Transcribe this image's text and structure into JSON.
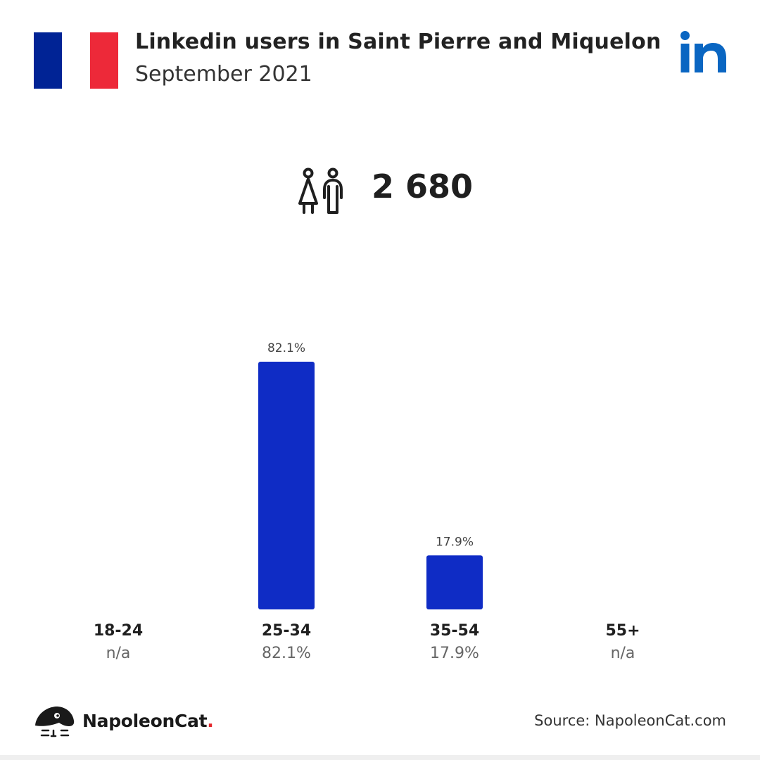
{
  "header": {
    "title": "Linkedin users in Saint Pierre and Miquelon",
    "subtitle": "September 2021",
    "flag_colors": [
      "#002395",
      "#ffffff",
      "#ED2939"
    ],
    "platform_icon": "linkedin-logo",
    "platform_color": "#0A66C2"
  },
  "summary": {
    "icon": "users-icon",
    "total_users": "2 680"
  },
  "chart_data": {
    "type": "bar",
    "categories": [
      "18-24",
      "25-34",
      "35-54",
      "55+"
    ],
    "values": [
      null,
      82.1,
      17.9,
      null
    ],
    "data_labels": [
      "",
      "82.1%",
      "17.9%",
      ""
    ],
    "value_labels": [
      "n/a",
      "82.1%",
      "17.9%",
      "n/a"
    ],
    "title": "",
    "xlabel": "",
    "ylabel": "",
    "unit": "%",
    "ylim": [
      0,
      82.1
    ],
    "grid": false,
    "legend": "none",
    "bar_color": "#0F2CC5"
  },
  "footer": {
    "brand_name": "NapoleonCat",
    "brand_dot": ".",
    "brand_dot_color": "#E4262C",
    "source": "Source: NapoleonCat.com"
  }
}
